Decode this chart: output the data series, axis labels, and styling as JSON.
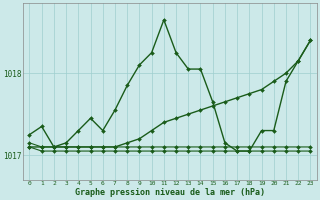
{
  "title": "Graphe pression niveau de la mer (hPa)",
  "bg_color": "#cce9e9",
  "grid_color": "#9fcfcf",
  "line_color": "#1a5c1a",
  "xlim": [
    -0.5,
    23.5
  ],
  "ylim": [
    1016.7,
    1018.85
  ],
  "yticks": [
    1017,
    1018
  ],
  "xticks": [
    0,
    1,
    2,
    3,
    4,
    5,
    6,
    7,
    8,
    9,
    10,
    11,
    12,
    13,
    14,
    15,
    16,
    17,
    18,
    19,
    20,
    21,
    22,
    23
  ],
  "series": [
    {
      "y": [
        1017.25,
        1017.35,
        1017.1,
        1017.15,
        1017.3,
        1017.45,
        1017.3,
        1017.55,
        1017.85,
        1018.1,
        1018.25,
        1018.65,
        1018.25,
        1018.05,
        1018.05,
        1017.65,
        1017.15,
        1017.05,
        1017.05,
        1017.3,
        1017.3,
        1017.9,
        1018.15,
        1018.4
      ],
      "lw": 1.0
    },
    {
      "y": [
        1017.1,
        1017.1,
        1017.1,
        1017.1,
        1017.1,
        1017.1,
        1017.1,
        1017.1,
        1017.15,
        1017.2,
        1017.3,
        1017.4,
        1017.45,
        1017.5,
        1017.55,
        1017.6,
        1017.65,
        1017.7,
        1017.75,
        1017.8,
        1017.9,
        1018.0,
        1018.15,
        1018.4
      ],
      "lw": 1.0
    },
    {
      "y": [
        1017.1,
        1017.05,
        1017.05,
        1017.05,
        1017.05,
        1017.05,
        1017.05,
        1017.05,
        1017.05,
        1017.05,
        1017.05,
        1017.05,
        1017.05,
        1017.05,
        1017.05,
        1017.05,
        1017.05,
        1017.05,
        1017.05,
        1017.05,
        1017.05,
        1017.05,
        1017.05,
        1017.05
      ],
      "lw": 0.8
    },
    {
      "y": [
        1017.15,
        1017.1,
        1017.1,
        1017.1,
        1017.1,
        1017.1,
        1017.1,
        1017.1,
        1017.1,
        1017.1,
        1017.1,
        1017.1,
        1017.1,
        1017.1,
        1017.1,
        1017.1,
        1017.1,
        1017.1,
        1017.1,
        1017.1,
        1017.1,
        1017.1,
        1017.1,
        1017.1
      ],
      "lw": 0.8
    }
  ]
}
